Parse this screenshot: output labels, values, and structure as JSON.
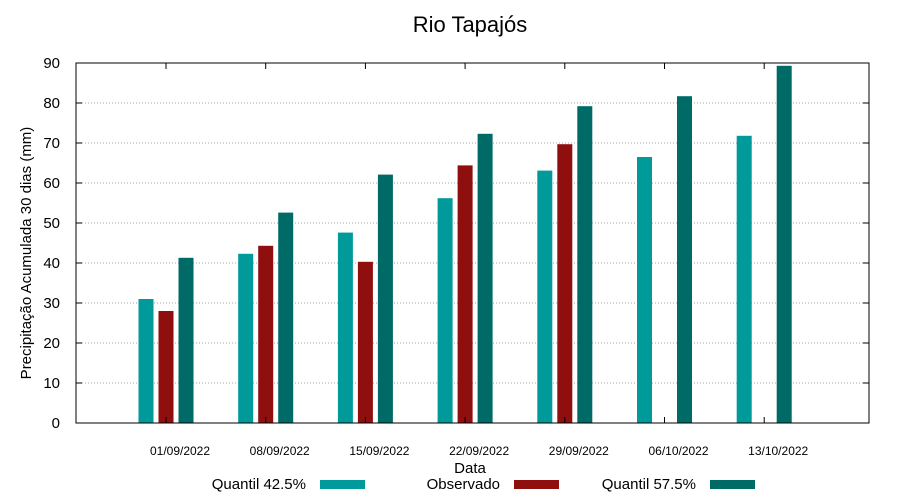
{
  "chart_data": {
    "type": "bar",
    "title": "Rio Tapajós",
    "xlabel": "Data",
    "ylabel": "Precipitação Acumulada 30 dias (mm)",
    "ylim": [
      0,
      90
    ],
    "yticks": [
      0,
      10,
      20,
      30,
      40,
      50,
      60,
      70,
      80,
      90
    ],
    "grid": true,
    "legend_position": "bottom",
    "categories": [
      "01/09/2022",
      "08/09/2022",
      "15/09/2022",
      "22/09/2022",
      "29/09/2022",
      "06/10/2022",
      "13/10/2022"
    ],
    "series": [
      {
        "name": "Quantil 42.5%",
        "color": "#009a9a",
        "values": [
          31.0,
          42.3,
          47.6,
          56.2,
          63.1,
          66.5,
          71.8
        ]
      },
      {
        "name": "Observado",
        "color": "#8f0f0f",
        "values": [
          28.0,
          44.3,
          40.3,
          64.4,
          69.7,
          null,
          null
        ]
      },
      {
        "name": "Quantil 57.5%",
        "color": "#006a66",
        "values": [
          41.3,
          52.6,
          62.1,
          72.3,
          79.2,
          81.7,
          89.3
        ]
      }
    ]
  }
}
